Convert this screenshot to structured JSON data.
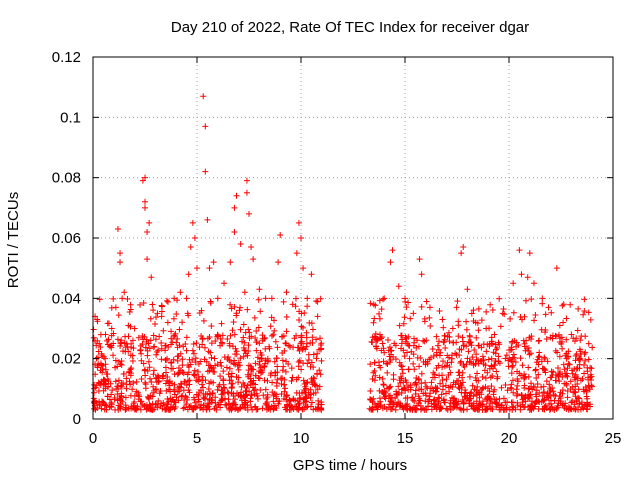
{
  "chart_data": {
    "type": "scatter",
    "title": "Day 210 of 2022, Rate Of TEC Index for receiver dgar",
    "xlabel": "GPS time / hours",
    "ylabel": "ROTI / TECUs",
    "xlim": [
      0,
      25
    ],
    "ylim": [
      0,
      0.12
    ],
    "grid": true,
    "marker": "+",
    "color": "#ff0000",
    "x_ticks": [
      0,
      5,
      10,
      15,
      20,
      25
    ],
    "x_tick_labels": [
      "0",
      "5",
      "10",
      "15",
      "20",
      "25"
    ],
    "y_ticks": [
      0,
      0.02,
      0.04,
      0.06,
      0.08,
      0.1,
      0.12
    ],
    "y_tick_labels": [
      "0",
      "0.02",
      "0.04",
      "0.06",
      "0.08",
      "0.1",
      "0.12"
    ],
    "data_gap_hours": [
      11.0,
      13.3
    ],
    "series": [
      {
        "name": "ROTI",
        "points": [
          [
            0.1,
            0.034
          ],
          [
            0.2,
            0.033
          ],
          [
            0.3,
            0.025
          ],
          [
            0.6,
            0.028
          ],
          [
            0.9,
            0.03
          ],
          [
            1.1,
            0.037
          ],
          [
            1.2,
            0.063
          ],
          [
            1.3,
            0.052
          ],
          [
            1.3,
            0.055
          ],
          [
            1.4,
            0.04
          ],
          [
            1.5,
            0.042
          ],
          [
            1.7,
            0.031
          ],
          [
            2.0,
            0.03
          ],
          [
            2.4,
            0.079
          ],
          [
            2.5,
            0.08
          ],
          [
            2.5,
            0.072
          ],
          [
            2.5,
            0.07
          ],
          [
            2.6,
            0.062
          ],
          [
            2.6,
            0.053
          ],
          [
            2.7,
            0.065
          ],
          [
            2.8,
            0.047
          ],
          [
            3.1,
            0.035
          ],
          [
            3.3,
            0.034
          ],
          [
            3.6,
            0.032
          ],
          [
            3.9,
            0.04
          ],
          [
            4.2,
            0.042
          ],
          [
            4.5,
            0.04
          ],
          [
            4.6,
            0.048
          ],
          [
            4.7,
            0.057
          ],
          [
            4.8,
            0.065
          ],
          [
            4.9,
            0.06
          ],
          [
            5.0,
            0.05
          ],
          [
            5.3,
            0.107
          ],
          [
            5.4,
            0.097
          ],
          [
            5.4,
            0.082
          ],
          [
            5.5,
            0.066
          ],
          [
            5.6,
            0.05
          ],
          [
            5.8,
            0.052
          ],
          [
            6.0,
            0.04
          ],
          [
            6.3,
            0.045
          ],
          [
            6.6,
            0.052
          ],
          [
            6.8,
            0.062
          ],
          [
            6.8,
            0.07
          ],
          [
            6.9,
            0.074
          ],
          [
            7.1,
            0.058
          ],
          [
            7.3,
            0.042
          ],
          [
            7.4,
            0.079
          ],
          [
            7.4,
            0.075
          ],
          [
            7.5,
            0.068
          ],
          [
            7.6,
            0.057
          ],
          [
            7.7,
            0.053
          ],
          [
            8.0,
            0.043
          ],
          [
            8.3,
            0.04
          ],
          [
            8.6,
            0.04
          ],
          [
            8.9,
            0.052
          ],
          [
            9.0,
            0.061
          ],
          [
            9.3,
            0.042
          ],
          [
            9.6,
            0.038
          ],
          [
            9.8,
            0.055
          ],
          [
            9.9,
            0.065
          ],
          [
            10.0,
            0.06
          ],
          [
            10.1,
            0.05
          ],
          [
            10.3,
            0.04
          ],
          [
            10.5,
            0.048
          ],
          [
            10.8,
            0.034
          ],
          [
            13.5,
            0.038
          ],
          [
            14.0,
            0.04
          ],
          [
            14.3,
            0.052
          ],
          [
            14.4,
            0.056
          ],
          [
            14.7,
            0.044
          ],
          [
            15.0,
            0.04
          ],
          [
            15.4,
            0.035
          ],
          [
            15.7,
            0.053
          ],
          [
            15.8,
            0.048
          ],
          [
            16.2,
            0.037
          ],
          [
            16.8,
            0.033
          ],
          [
            17.3,
            0.03
          ],
          [
            17.7,
            0.055
          ],
          [
            17.8,
            0.057
          ],
          [
            18.0,
            0.043
          ],
          [
            18.4,
            0.032
          ],
          [
            18.9,
            0.03
          ],
          [
            19.3,
            0.028
          ],
          [
            19.7,
            0.035
          ],
          [
            20.2,
            0.045
          ],
          [
            20.5,
            0.056
          ],
          [
            20.6,
            0.048
          ],
          [
            20.9,
            0.047
          ],
          [
            21.0,
            0.055
          ],
          [
            21.2,
            0.045
          ],
          [
            21.6,
            0.04
          ],
          [
            21.9,
            0.037
          ],
          [
            22.3,
            0.05
          ],
          [
            22.6,
            0.032
          ],
          [
            23.0,
            0.028
          ],
          [
            23.4,
            0.02
          ],
          [
            23.9,
            0.017
          ]
        ],
        "dense_band": {
          "segments": [
            [
              0.0,
              11.0
            ],
            [
              13.3,
              24.0
            ]
          ],
          "y_core_range": [
            0.003,
            0.028
          ],
          "y_typical": 0.012
        }
      }
    ]
  }
}
